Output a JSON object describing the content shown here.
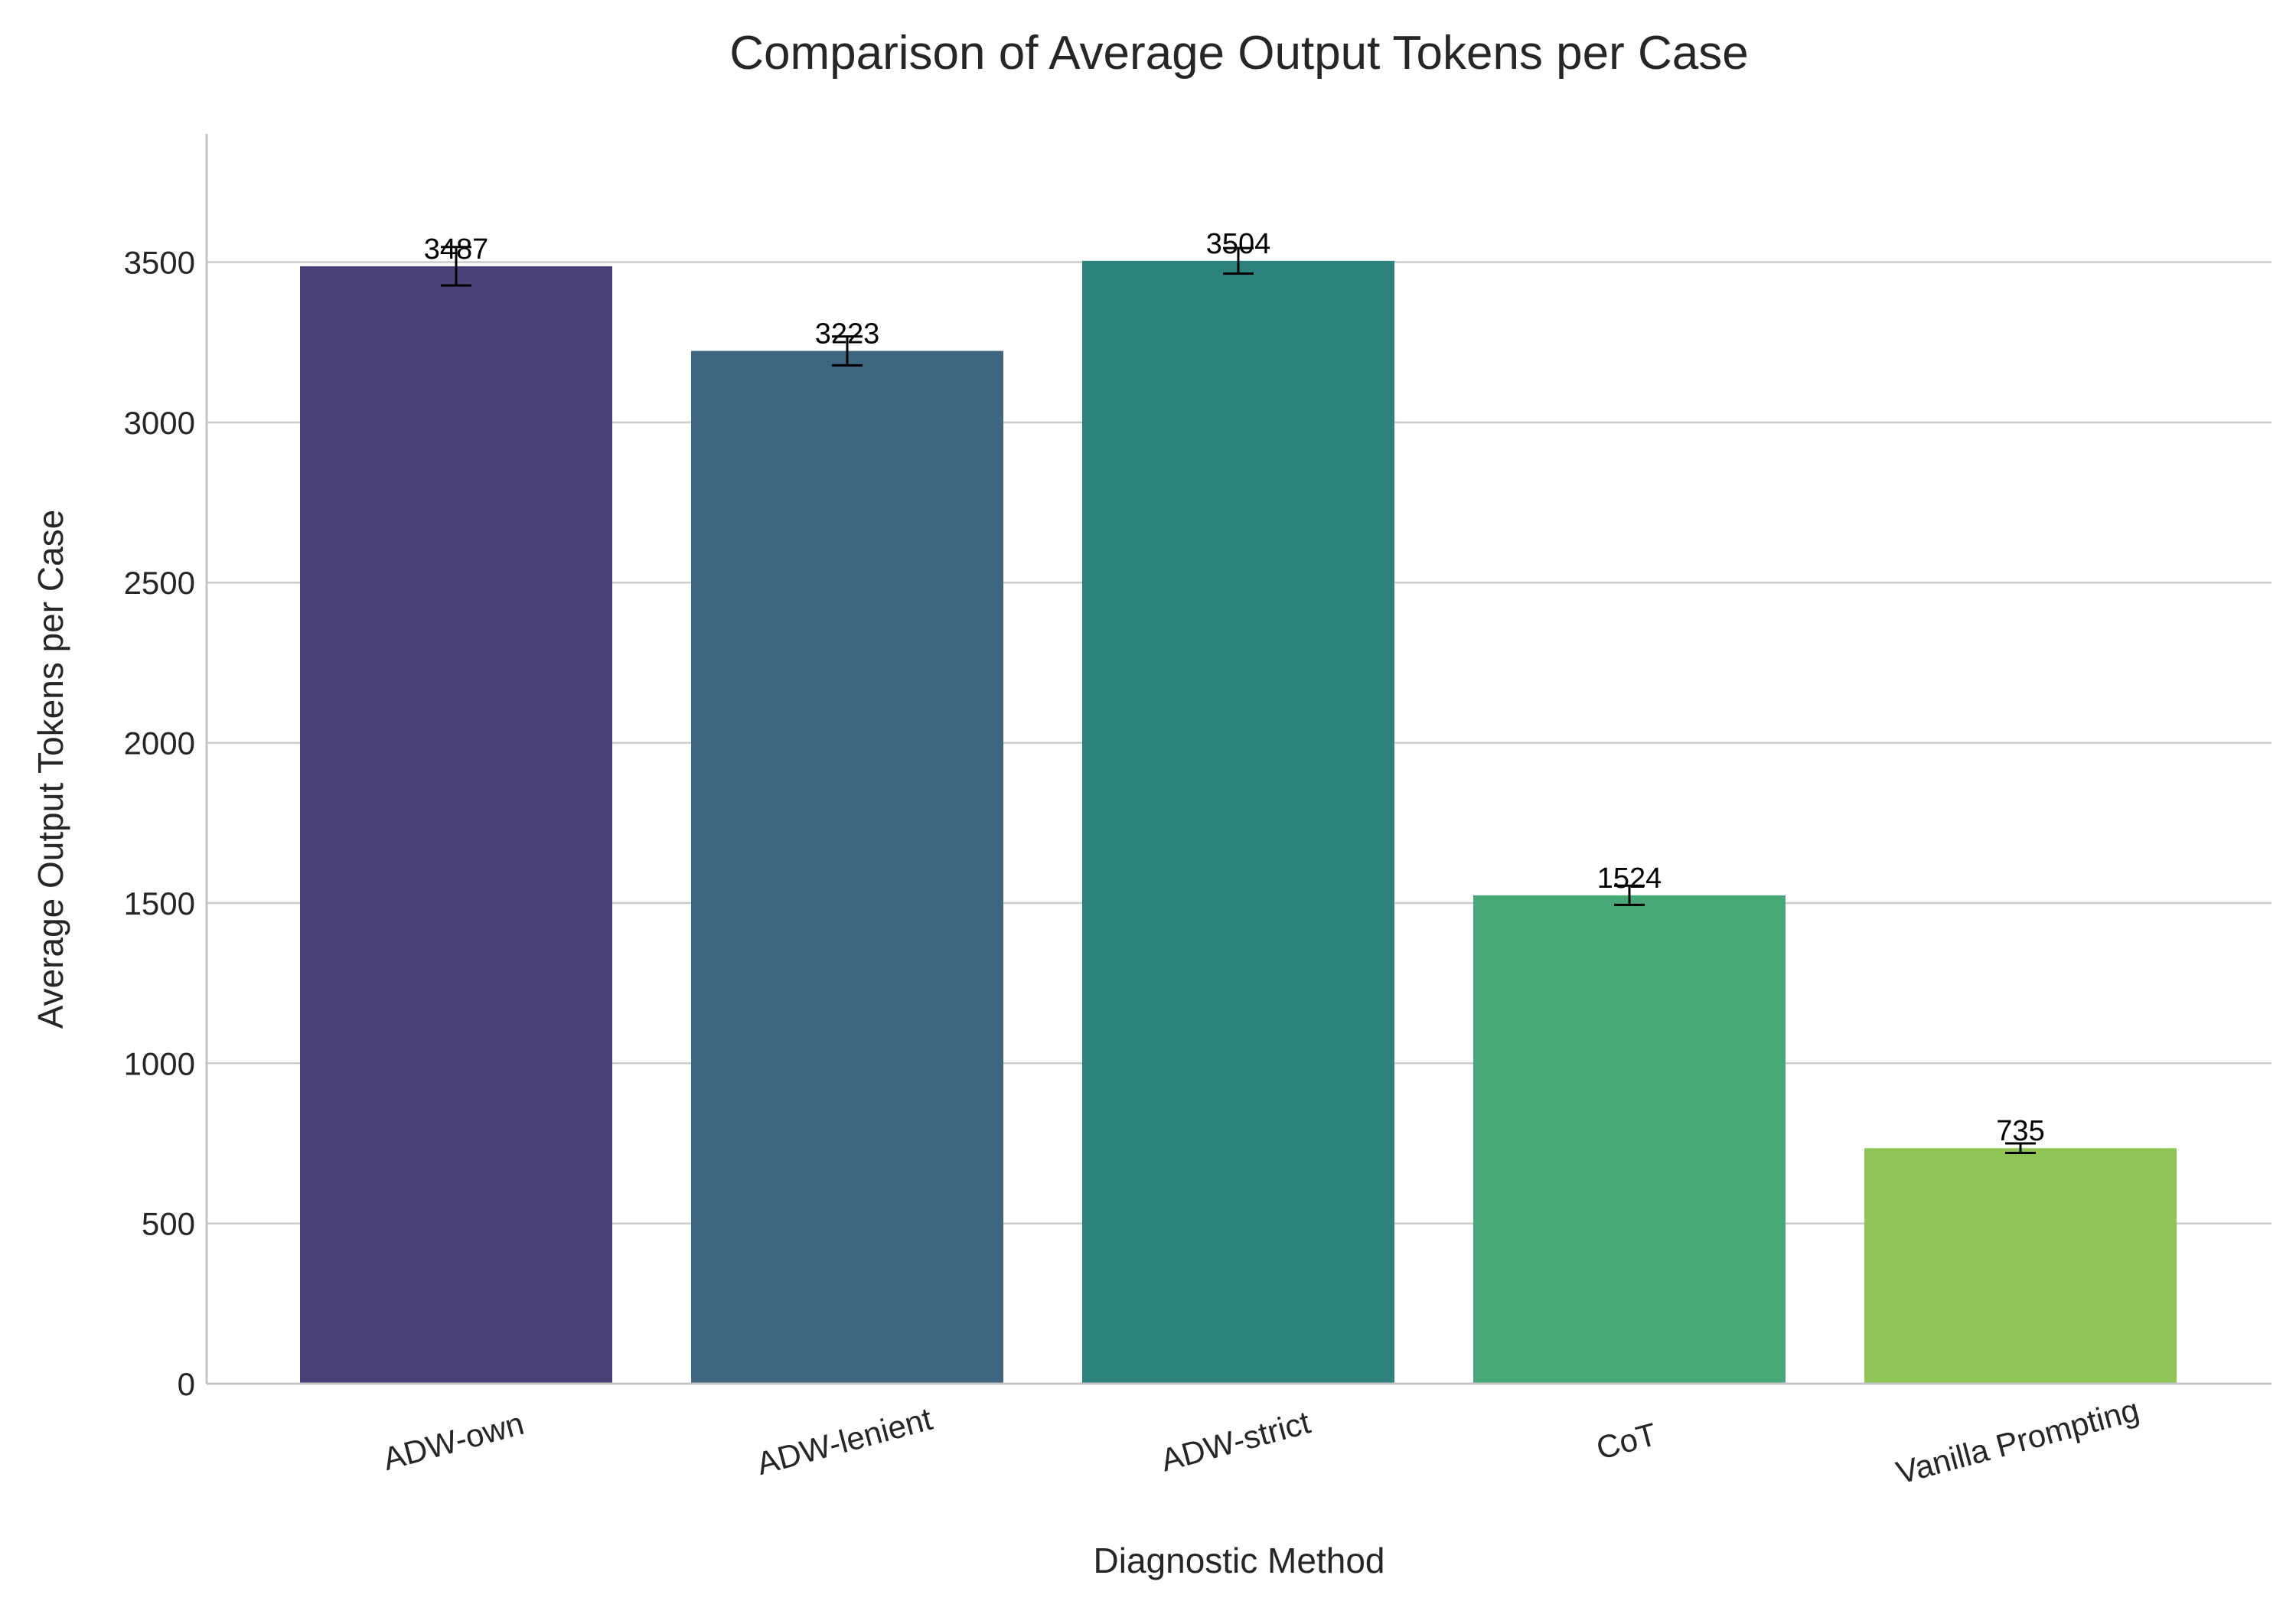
{
  "chart_data": {
    "type": "bar",
    "title": "Comparison of Average Output Tokens per Case",
    "xlabel": "Diagnostic Method",
    "ylabel": "Average Output Tokens per Case",
    "categories": [
      "ADW-own",
      "ADW-lenient",
      "ADW-strict",
      "CoT",
      "Vanilla Prompting"
    ],
    "values": [
      3487,
      3223,
      3504,
      1524,
      735
    ],
    "error": [
      60,
      45,
      40,
      30,
      15
    ],
    "data_labels": [
      "3487",
      "3223",
      "3504",
      "1524",
      "735"
    ],
    "colors": [
      "#4a4178",
      "#3e6680",
      "#2e827e",
      "#48a878",
      "#8fc456"
    ],
    "ylim": [
      0,
      3900
    ],
    "yticks": [
      0,
      500,
      1000,
      1500,
      2000,
      2500,
      3000,
      3500
    ],
    "ytick_labels": [
      "0",
      "500",
      "1000",
      "1500",
      "2000",
      "2500",
      "3000",
      "3500"
    ],
    "grid": true,
    "legend": "none",
    "xtick_rotation_deg": -15
  }
}
